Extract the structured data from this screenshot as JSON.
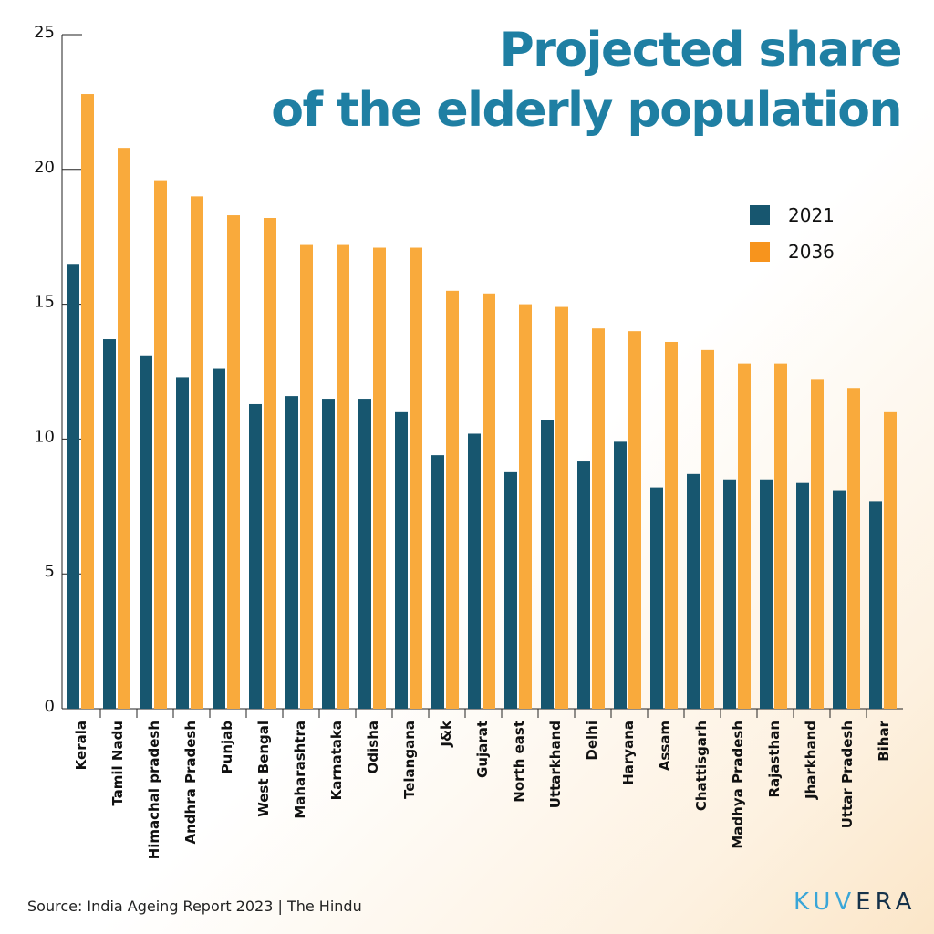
{
  "chart_data": {
    "type": "bar",
    "title": "Projected share of the elderly population",
    "title_lines": [
      "Projected share",
      "of the elderly population"
    ],
    "categories": [
      "Kerala",
      "Tamil Nadu",
      "Himachal pradesh",
      "Andhra Pradesh",
      "Punjab",
      "West Bengal",
      "Maharashtra",
      "Karnataka",
      "Odisha",
      "Telangana",
      "J&k",
      "Gujarat",
      "North east",
      "Uttarkhand",
      "Delhi",
      "Haryana",
      "Assam",
      "Chattisgarh",
      "Madhya Pradesh",
      "Rajasthan",
      "Jharkhand",
      "Uttar Pradesh",
      "Bihar"
    ],
    "series": [
      {
        "name": "2021",
        "color": "#17566f",
        "values": [
          16.5,
          13.7,
          13.1,
          12.3,
          12.6,
          11.3,
          11.6,
          11.5,
          11.5,
          11.0,
          9.4,
          10.2,
          8.8,
          10.7,
          9.2,
          9.9,
          8.2,
          8.7,
          8.5,
          8.5,
          8.4,
          8.1,
          7.7
        ]
      },
      {
        "name": "2036",
        "color": "#f9aa3c",
        "values": [
          22.8,
          20.8,
          19.6,
          19.0,
          18.3,
          18.2,
          17.2,
          17.2,
          17.1,
          17.1,
          15.5,
          15.4,
          15.0,
          14.9,
          14.1,
          14.0,
          13.6,
          13.3,
          12.8,
          12.8,
          12.2,
          11.9,
          11.0
        ]
      }
    ],
    "ylim": [
      0,
      25
    ],
    "yticks": [
      0,
      5,
      10,
      15,
      20,
      25
    ],
    "xlabel": "",
    "ylabel": "",
    "grid": false,
    "legend_placement": "top-right"
  },
  "legend_colors": {
    "2021": "#17566f",
    "2036": "#f7941d"
  },
  "source": "Source: India Ageing Report 2023 | The Hindu",
  "logo": {
    "text_light": "KUV",
    "text_dark": "ERA",
    "light_color": "#3aa6d8",
    "dark_color": "#16324a"
  }
}
